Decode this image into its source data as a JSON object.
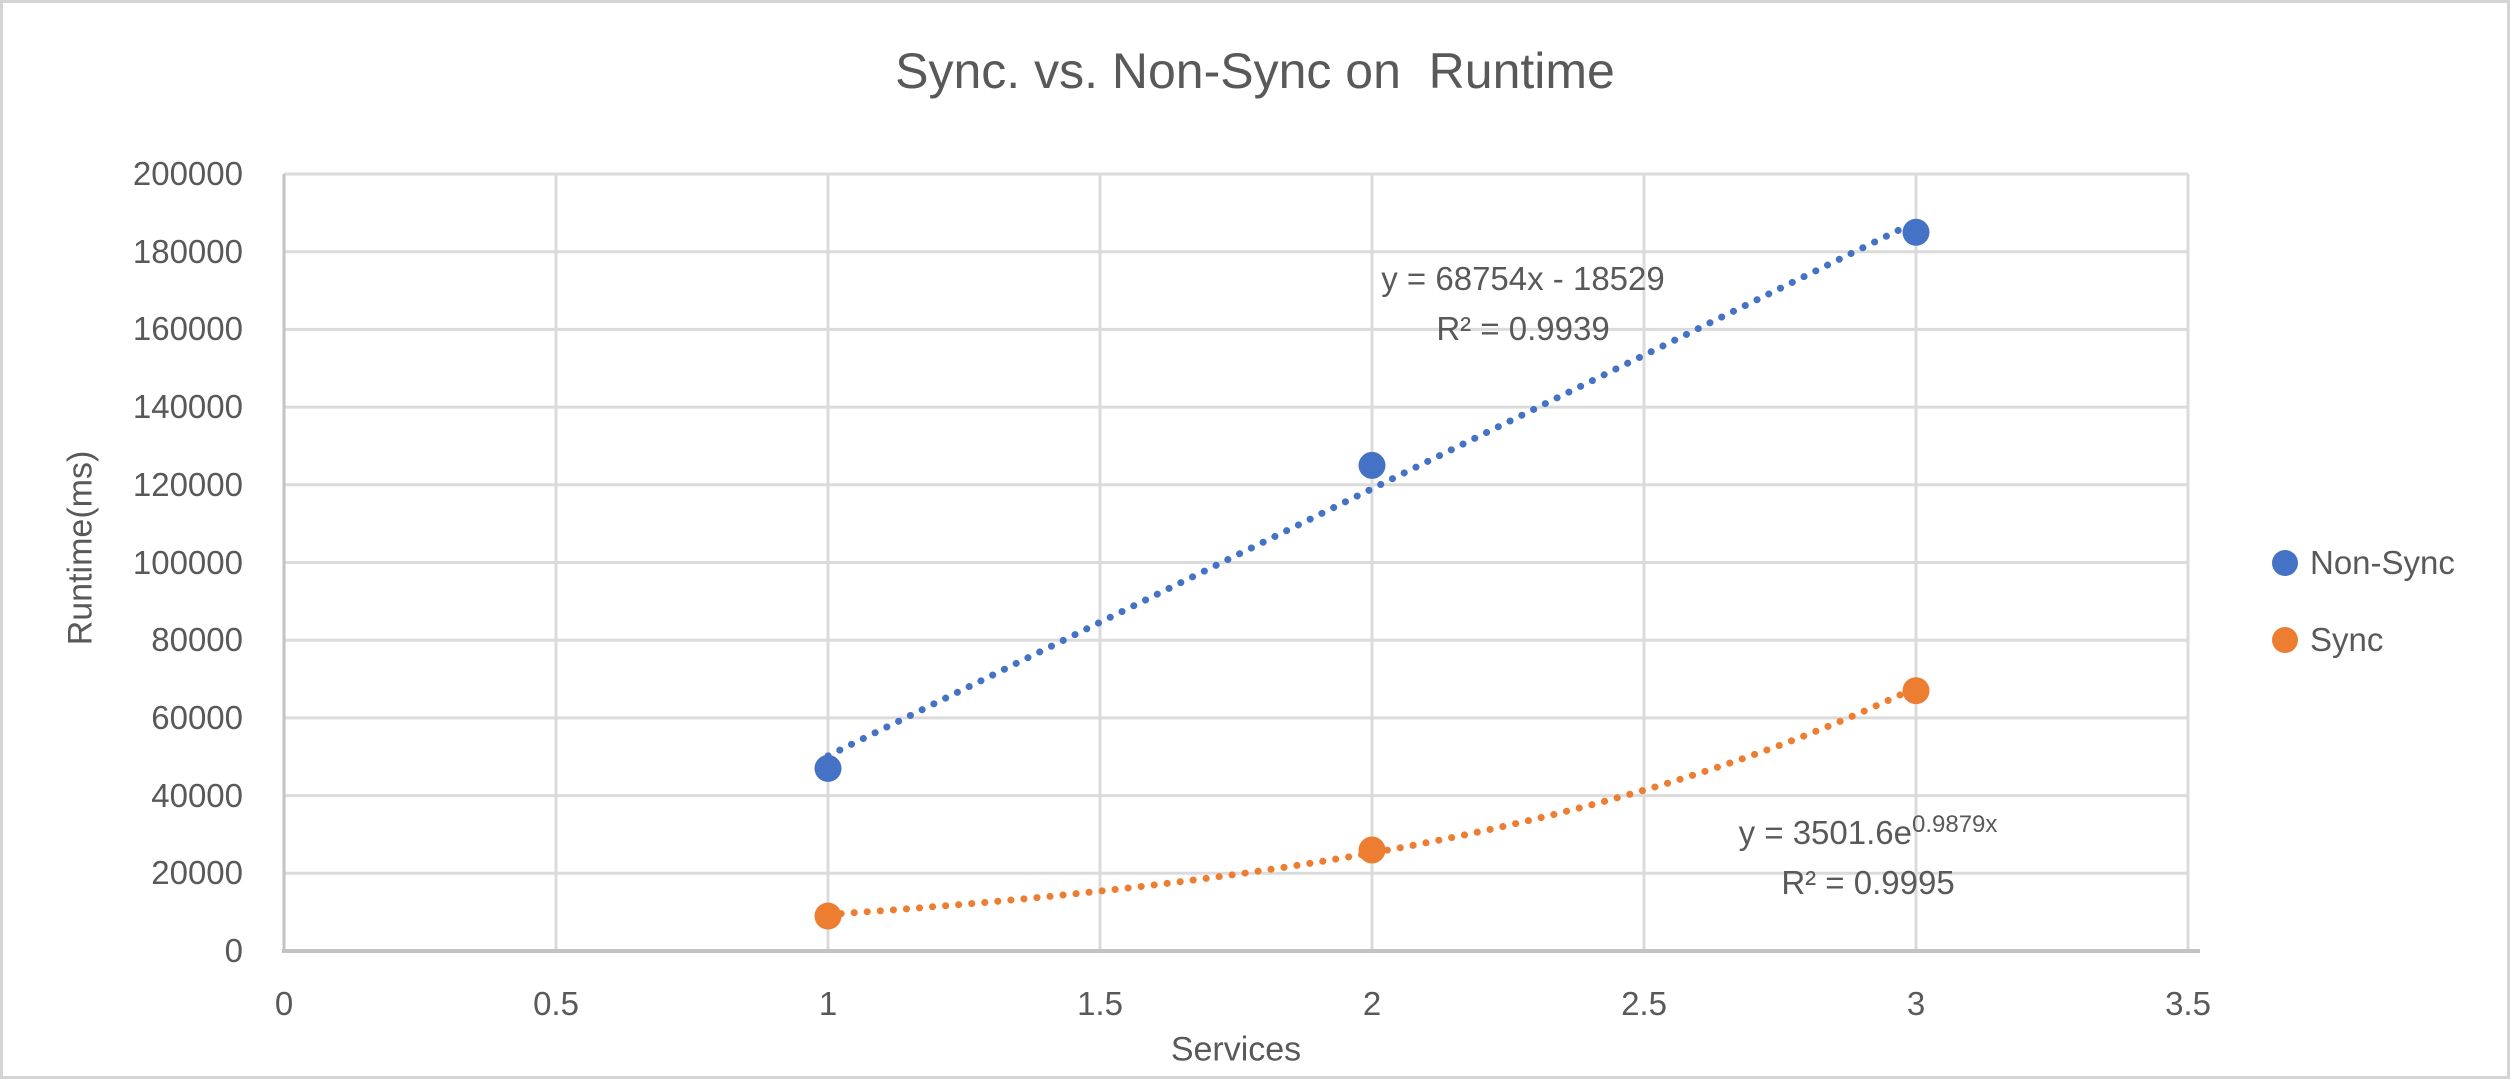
{
  "figure": {
    "border_color": "#D4D4D4",
    "background_color": "#FFFFFF",
    "text_color": "#595959"
  },
  "chart_data": {
    "type": "scatter",
    "title": "Sync. vs. Non-Sync on  Runtime",
    "xlabel": "Services",
    "ylabel": "Runtime(ms)",
    "xlim": [
      0,
      3.5
    ],
    "ylim": [
      0,
      200000
    ],
    "x_ticks": [
      "0",
      "0.5",
      "1",
      "1.5",
      "2",
      "2.5",
      "3",
      "3.5"
    ],
    "y_ticks": [
      "0",
      "20000",
      "40000",
      "60000",
      "80000",
      "100000",
      "120000",
      "140000",
      "160000",
      "180000",
      "200000"
    ],
    "grid": true,
    "legend_position": "right",
    "gridline_color": "#DBDBDB",
    "axis_line_color": "#C3C3C3",
    "series": [
      {
        "name": "Non-Sync",
        "color": "#4472C4",
        "marker": "circle",
        "x": [
          1,
          2,
          3
        ],
        "y": [
          47000,
          125000,
          185000
        ],
        "trendline": {
          "kind": "linear",
          "slope": 68754,
          "intercept": -18529,
          "x_range": [
            1,
            3
          ],
          "style": "dotted"
        },
        "annotation": {
          "line1": "y = 68754x - 18529",
          "line2": "R² = 0.9939"
        }
      },
      {
        "name": "Sync",
        "color": "#ED7D31",
        "marker": "circle",
        "x": [
          1,
          2,
          3
        ],
        "y": [
          9000,
          26000,
          67000
        ],
        "trendline": {
          "kind": "exponential",
          "a": 3501.6,
          "b": 0.9879,
          "x_range": [
            1,
            3
          ],
          "style": "dotted"
        },
        "annotation": {
          "line1_base": "y = 3501.6e",
          "line1_sup": "0.9879x",
          "line2": "R² = 0.9995"
        }
      }
    ]
  }
}
